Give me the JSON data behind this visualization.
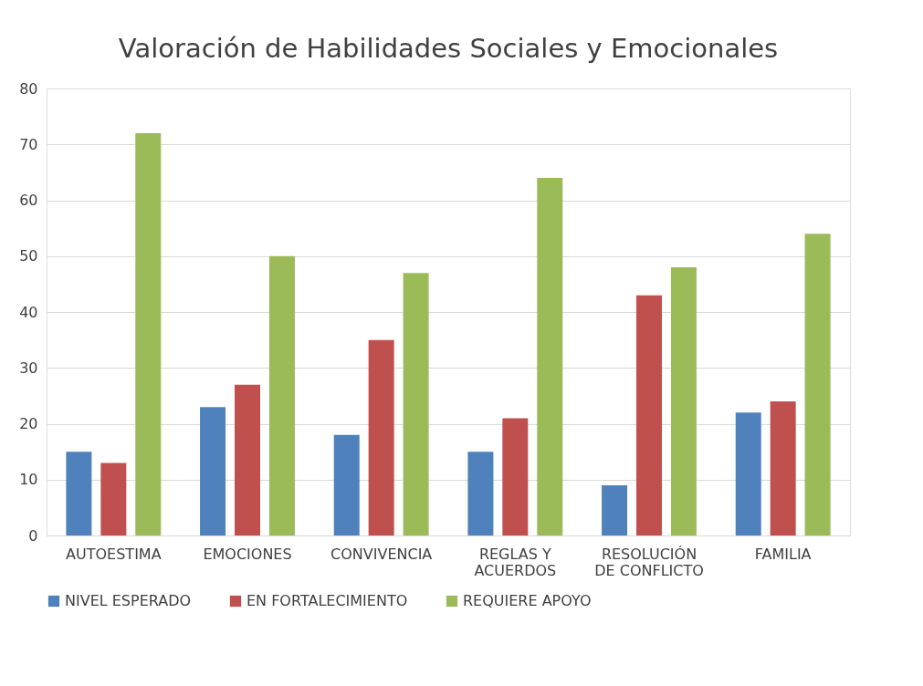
{
  "chart_data": {
    "type": "bar",
    "title": "Valoración de Habilidades Sociales y Emocionales",
    "categories": [
      "AUTOESTIMA",
      "EMOCIONES",
      "CONVIVENCIA",
      "REGLAS Y ACUERDOS",
      "RESOLUCIÓN DE CONFLICTO",
      "FAMILIA"
    ],
    "series": [
      {
        "name": "NIVEL ESPERADO",
        "color": "#4f81bd",
        "values": [
          15,
          23,
          18,
          15,
          9,
          22
        ]
      },
      {
        "name": "EN FORTALECIMIENTO",
        "color": "#c0504d",
        "values": [
          13,
          27,
          35,
          21,
          43,
          24
        ]
      },
      {
        "name": "REQUIERE APOYO",
        "color": "#9bbb59",
        "values": [
          72,
          50,
          47,
          64,
          48,
          54
        ]
      }
    ],
    "ylim": [
      0,
      80
    ],
    "yticks": [
      0,
      10,
      20,
      30,
      40,
      50,
      60,
      70,
      80
    ],
    "grid": "y",
    "legend": "bottom"
  }
}
